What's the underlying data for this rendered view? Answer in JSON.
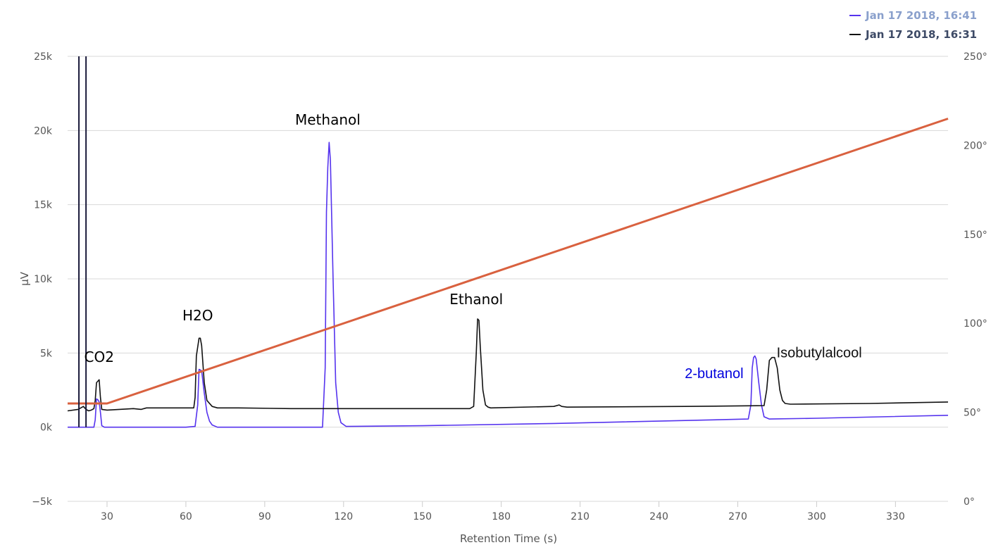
{
  "colors": {
    "series_blue": "#5533ee",
    "series_black": "#111111",
    "temperature": "#d9613f",
    "spike": "#1a1a3a",
    "annotation_blue": "#0000dd",
    "legend_blue_text": "#8aa0cc",
    "legend_black_text": "#3d4a66"
  },
  "chart_data": {
    "type": "line",
    "title": "",
    "xlabel": "Retention Time (s)",
    "ylabel": "µV",
    "xlim": [
      15,
      350
    ],
    "ylim": [
      -5000,
      25000
    ],
    "y2lim": [
      0,
      250
    ],
    "x_ticks": [
      30,
      60,
      90,
      120,
      150,
      180,
      210,
      240,
      270,
      300,
      330
    ],
    "y_ticks": [
      -5000,
      0,
      5000,
      10000,
      15000,
      20000,
      25000
    ],
    "y_tick_labels": [
      "−5k",
      "0k",
      "5k",
      "10k",
      "15k",
      "20k",
      "25k"
    ],
    "y2_ticks": [
      0,
      50,
      100,
      150,
      200,
      250
    ],
    "y2_tick_labels": [
      "0°",
      "50°",
      "100°",
      "150°",
      "200°",
      "250°"
    ],
    "legend_position": "top-right",
    "legend": [
      {
        "label": "Jan 17 2018, 16:41",
        "color_key": "series_blue"
      },
      {
        "label": "Jan 17 2018, 16:31",
        "color_key": "series_black"
      }
    ],
    "series": [
      {
        "name": "Jan 17 2018, 16:41",
        "color_key": "series_blue",
        "axis": "left",
        "x": [
          15,
          19,
          20,
          22,
          23,
          24,
          25,
          25.5,
          26,
          26.5,
          27,
          27.5,
          28,
          29,
          60,
          63.5,
          64.5,
          65,
          66,
          67,
          68,
          69,
          70,
          72,
          112,
          113,
          113.5,
          114,
          114.5,
          115,
          116,
          117,
          118,
          119,
          121,
          150,
          200,
          250,
          274,
          275,
          275.5,
          276,
          276.5,
          277,
          278,
          279,
          280,
          282,
          300,
          350
        ],
        "y": [
          0,
          0,
          0,
          0,
          0,
          0,
          0,
          500,
          1900,
          1850,
          1700,
          1000,
          100,
          0,
          0,
          50,
          1500,
          3900,
          3800,
          2300,
          1000,
          400,
          150,
          0,
          0,
          4000,
          14500,
          17500,
          19200,
          18000,
          10000,
          3000,
          1000,
          300,
          50,
          100,
          250,
          450,
          550,
          1500,
          4000,
          4700,
          4800,
          4600,
          3000,
          1500,
          700,
          550,
          600,
          800
        ]
      },
      {
        "name": "Jan 17 2018, 16:31",
        "color_key": "series_black",
        "axis": "left",
        "x": [
          15,
          19,
          20,
          21,
          22,
          23,
          24,
          25,
          25.5,
          26,
          26.5,
          27,
          27.5,
          28,
          30,
          40,
          43,
          45,
          60,
          63,
          63.5,
          64,
          65,
          65.5,
          66,
          67,
          68,
          70,
          72,
          80,
          100,
          150,
          168,
          169.5,
          170.5,
          171,
          171.5,
          172,
          173,
          174,
          175,
          176,
          200,
          202,
          203,
          205,
          250,
          280,
          281,
          282,
          283,
          284,
          285,
          286,
          287,
          288,
          290,
          320,
          350
        ],
        "y": [
          1100,
          1200,
          1300,
          1400,
          1200,
          1100,
          1150,
          1250,
          1800,
          3000,
          3100,
          3200,
          2000,
          1200,
          1150,
          1250,
          1200,
          1300,
          1300,
          1300,
          2000,
          4800,
          6000,
          6000,
          5500,
          3000,
          1800,
          1400,
          1300,
          1300,
          1250,
          1250,
          1250,
          1400,
          5000,
          7300,
          7200,
          5500,
          2500,
          1500,
          1350,
          1300,
          1400,
          1500,
          1400,
          1350,
          1400,
          1450,
          2500,
          4500,
          4700,
          4700,
          4000,
          2500,
          1800,
          1600,
          1550,
          1600,
          1700
        ]
      },
      {
        "name": "",
        "color_key": "temperature",
        "axis": "right",
        "x": [
          15,
          30,
          350
        ],
        "y": [
          55,
          55,
          215
        ]
      }
    ],
    "spikes": [
      {
        "x": 19.3,
        "y_top": 25000,
        "y_bottom": 0
      },
      {
        "x": 22.0,
        "y_top": 25000,
        "y_bottom": 0
      }
    ],
    "annotations": [
      {
        "text": "CO2",
        "x": 27,
        "y": 4400,
        "color_key": "series_black",
        "font": "sans"
      },
      {
        "text": "H2O",
        "x": 64.5,
        "y": 7200,
        "color_key": "series_black",
        "font": "sans"
      },
      {
        "text": "Methanol",
        "x": 114,
        "y": 20400,
        "color_key": "series_black",
        "font": "sans"
      },
      {
        "text": "Ethanol",
        "x": 170.5,
        "y": 8300,
        "color_key": "series_black",
        "font": "sans"
      },
      {
        "text": "2-butanol",
        "x": 261,
        "y": 3300,
        "color_key": "annotation_blue",
        "font": "liberation"
      },
      {
        "text": "Isobutylalcool",
        "x": 301,
        "y": 4700,
        "color_key": "series_black",
        "font": "liberation"
      }
    ]
  }
}
